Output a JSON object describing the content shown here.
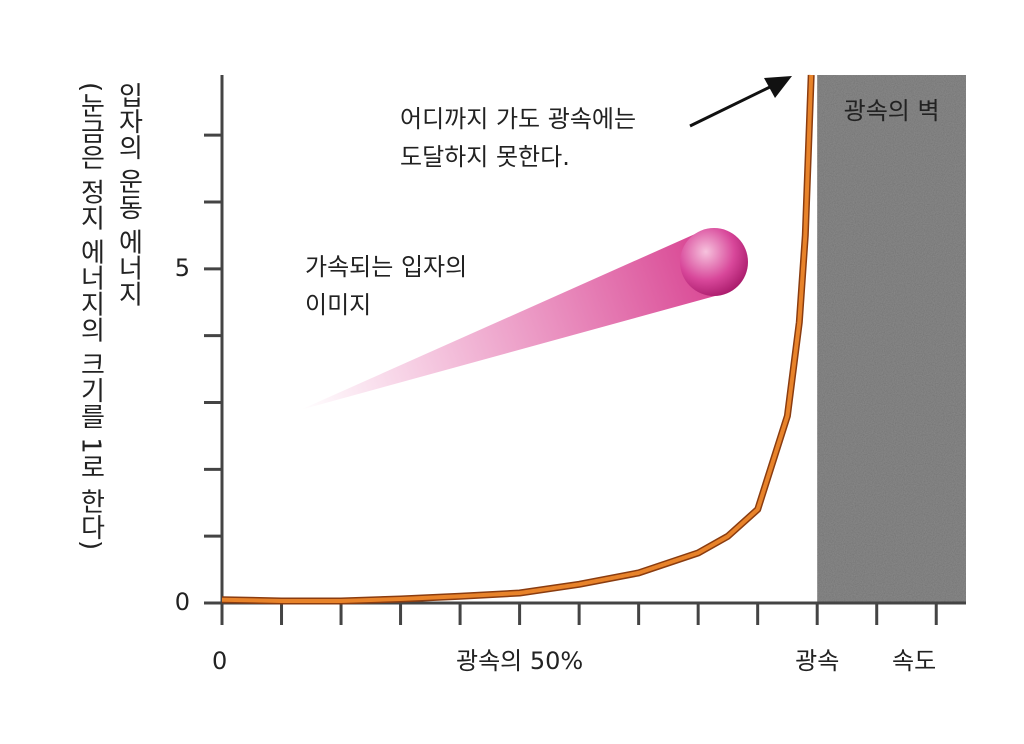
{
  "chart_data": {
    "type": "line",
    "y_label": "입자의 운동 에너지",
    "y_note": "(눈금은 정지 에너지의 크기를 1로 한다)",
    "x_label": "속도",
    "wall_label": "광속의 벽",
    "annotations": [
      {
        "lines": [
          "어디까지 가도 광속에는",
          "도달하지 못한다."
        ]
      },
      {
        "lines": [
          "가속되는 입자의",
          "이미지"
        ]
      }
    ],
    "x": [
      0,
      0.1,
      0.2,
      0.3,
      0.4,
      0.5,
      0.6,
      0.7,
      0.8,
      0.85,
      0.9,
      0.95,
      0.97,
      0.98,
      0.99
    ],
    "values": [
      0.05,
      0.03,
      0.03,
      0.06,
      0.1,
      0.15,
      0.28,
      0.45,
      0.75,
      1.0,
      1.4,
      2.8,
      4.2,
      5.5,
      7.9
    ],
    "color": "#e8832a",
    "wall_start": 1,
    "wall_color": "#8c8c8c",
    "xlim": [
      0,
      1.25
    ],
    "ylim": [
      0,
      7.9
    ],
    "xticks": [
      0,
      {
        "value": 0.5,
        "label": "광속의 50%"
      },
      {
        "value": 1,
        "label": "광속"
      }
    ],
    "xminor_ticks": [
      0.1,
      0.2,
      0.3,
      0.4,
      0.6,
      0.7,
      0.8,
      0.9,
      1.1,
      1.2
    ],
    "yticks": [
      0,
      5
    ],
    "yminor_ticks": [
      1,
      2,
      3,
      4,
      6,
      7
    ]
  }
}
